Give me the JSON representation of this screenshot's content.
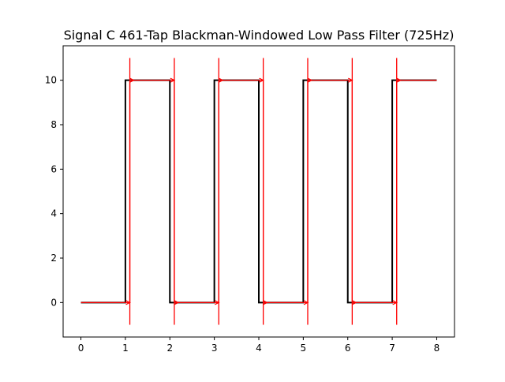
{
  "chart_data": {
    "type": "line",
    "title": "Signal C 461-Tap Blackman-Windowed Low Pass Filter (725Hz)",
    "xlabel": "",
    "ylabel": "",
    "xlim": [
      -0.4,
      8.4
    ],
    "ylim": [
      -1.55,
      11.55
    ],
    "xticks": [
      0,
      1,
      2,
      3,
      4,
      5,
      6,
      7,
      8
    ],
    "yticks": [
      0,
      2,
      4,
      6,
      8,
      10
    ],
    "grid": false,
    "legend": "none",
    "series": [
      {
        "color": "#000000",
        "line_width": "thick",
        "x": [
          0,
          1,
          1,
          2,
          2,
          3,
          3,
          4,
          4,
          5,
          5,
          6,
          6,
          7,
          7,
          8
        ],
        "y": [
          0,
          0,
          10,
          10,
          0,
          0,
          10,
          10,
          0,
          0,
          10,
          10,
          0,
          0,
          10,
          10
        ]
      },
      {
        "color": "#ff0000",
        "line_width": "thin",
        "transition_times": [
          1.1,
          2.1,
          3.1,
          4.1,
          5.1,
          6.1,
          7.1
        ],
        "transition_y_range": [
          -1,
          11
        ],
        "x": [
          0,
          1.1,
          1.1,
          2.1,
          2.1,
          3.1,
          3.1,
          4.1,
          4.1,
          5.1,
          5.1,
          6.1,
          6.1,
          7.1,
          7.1,
          8
        ],
        "y": [
          0,
          0,
          10,
          10,
          0,
          0,
          10,
          10,
          0,
          0,
          10,
          10,
          0,
          0,
          10,
          10
        ]
      }
    ]
  }
}
